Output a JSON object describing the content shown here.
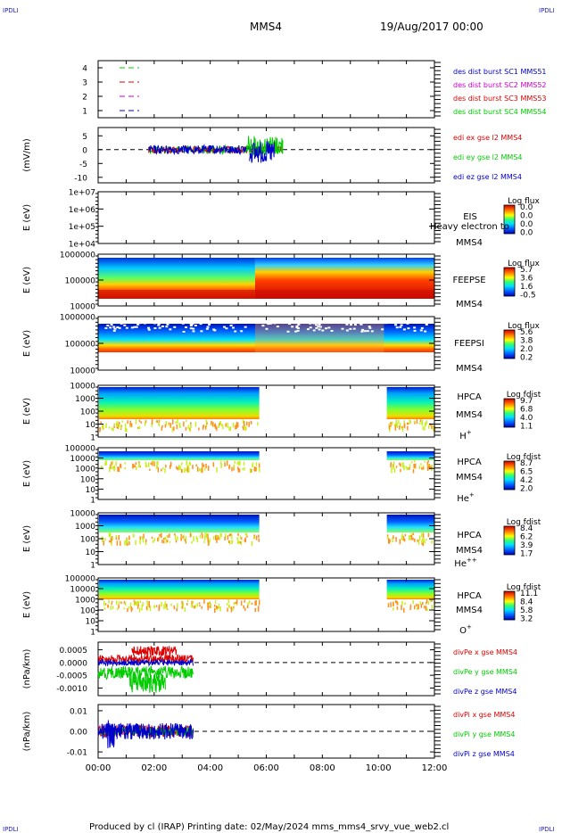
{
  "header": {
    "corner_left_top": "IPDLI",
    "corner_right_top": "IPDLI",
    "corner_left_bottom": "IPDLI",
    "corner_right_bottom": "IPDLI",
    "spacecraft": "MMS4",
    "date": "19/Aug/2017 00:00"
  },
  "footer": {
    "text": "Produced by cl (IRAP)   Printing date: 02/May/2024   mms_mms4_srvy_vue_web2.cl"
  },
  "colors": {
    "sc1": "#0000cc",
    "sc2": "#cc00cc",
    "sc3": "#dd0000",
    "sc4": "#00cc00",
    "x": "#dd0000",
    "y": "#00cc00",
    "z": "#0000cc"
  },
  "chart_data": [
    {
      "type": "line",
      "panel": "availability",
      "ylim": [
        0.5,
        4.5
      ],
      "y_ticks": [
        "1",
        "2",
        "3",
        "4"
      ],
      "legend": [
        "des dist burst SC1 MMS51",
        "des dist burst SC2 MMS52",
        "des dist burst SC3 MMS53",
        "des dist burst SC4 MMS54"
      ]
    },
    {
      "type": "line",
      "panel": "edi-efield",
      "ylabel": "(mV/m)",
      "ylim": [
        -12,
        8
      ],
      "y_ticks": [
        "5",
        "0",
        "-5",
        "-10"
      ],
      "legend": [
        "edi ex gse l2 MMS4",
        "edi ey gse l2 MMS4",
        "edi ez gse l2 MMS4"
      ],
      "x_range_hours": [
        1.8,
        6.6
      ]
    },
    {
      "type": "heatmap",
      "panel": "eis",
      "ylabel": "E (eV)",
      "y_ticks": [
        "1e+07",
        "1e+06",
        "1e+05",
        "1e+04"
      ],
      "instrument": "EIS",
      "overlap_text": "Heavy electron to",
      "spacecraft": "MMS4",
      "colorbar_title": "Log flux",
      "colorbar_ticks": [
        "0.0",
        "0.0",
        "0.0",
        "0.0"
      ]
    },
    {
      "type": "heatmap",
      "panel": "feepse",
      "ylabel": "E (eV)",
      "y_ticks": [
        "1000000",
        "100000",
        "10000"
      ],
      "instrument": "FEEPSE",
      "spacecraft": "MMS4",
      "colorbar_title": "Log flux",
      "colorbar_ticks": [
        "5.7",
        "3.6",
        "1.6",
        "-0.5"
      ]
    },
    {
      "type": "heatmap",
      "panel": "feepsi",
      "ylabel": "E (eV)",
      "y_ticks": [
        "1000000",
        "100000",
        "10000"
      ],
      "instrument": "FEEPSI",
      "spacecraft": "MMS4",
      "colorbar_title": "Log flux",
      "colorbar_ticks": [
        "5.6",
        "3.8",
        "2.0",
        "0.2"
      ]
    },
    {
      "type": "heatmap",
      "panel": "hpca-h",
      "ylabel": "E (eV)",
      "y_ticks": [
        "10000",
        "1000",
        "100",
        "10",
        "1"
      ],
      "instrument": "HPCA",
      "spacecraft": "MMS4",
      "species": "H",
      "species_sup": "+",
      "colorbar_title": "Log fdist",
      "colorbar_ticks": [
        "9.7",
        "6.8",
        "4.0",
        "1.1"
      ]
    },
    {
      "type": "heatmap",
      "panel": "hpca-he",
      "ylabel": "E (eV)",
      "y_ticks": [
        "100000",
        "10000",
        "1000",
        "100",
        "10",
        "1"
      ],
      "instrument": "HPCA",
      "spacecraft": "MMS4",
      "species": "He",
      "species_sup": "+",
      "colorbar_title": "Log fdist",
      "colorbar_ticks": [
        "8.7",
        "6.5",
        "4.2",
        "2.0"
      ]
    },
    {
      "type": "heatmap",
      "panel": "hpca-hepp",
      "ylabel": "E (eV)",
      "y_ticks": [
        "10000",
        "1000",
        "100",
        "10",
        "1"
      ],
      "instrument": "HPCA",
      "spacecraft": "MMS4",
      "species": "He",
      "species_sup": "++",
      "colorbar_title": "Log fdist",
      "colorbar_ticks": [
        "8.4",
        "6.2",
        "3.9",
        "1.7"
      ]
    },
    {
      "type": "heatmap",
      "panel": "hpca-o",
      "ylabel": "E (eV)",
      "y_ticks": [
        "100000",
        "10000",
        "1000",
        "100",
        "10",
        "1"
      ],
      "instrument": "HPCA",
      "spacecraft": "MMS4",
      "species": "O",
      "species_sup": "+",
      "colorbar_title": "Log fdist",
      "colorbar_ticks": [
        "11.1",
        "8.4",
        "5.8",
        "3.2"
      ]
    },
    {
      "type": "line",
      "panel": "divpe",
      "ylabel": "(nPa/km)",
      "ylim": [
        -0.0013,
        0.0008
      ],
      "y_ticks": [
        "0.0005",
        "0.0000",
        "-0.0005",
        "-0.0010"
      ],
      "legend": [
        "divPe x gse MMS4",
        "divPe y gse MMS4",
        "divPe z gse MMS4"
      ],
      "x_range_hours": [
        0.0,
        3.4
      ]
    },
    {
      "type": "line",
      "panel": "divpi",
      "ylabel": "(nPa/km)",
      "ylim": [
        -0.013,
        0.013
      ],
      "y_ticks": [
        "0.01",
        "0.00",
        "-0.01"
      ],
      "legend": [
        "divPi x gse MMS4",
        "divPi y gse MMS4",
        "divPi z gse MMS4"
      ],
      "x_range_hours": [
        0.0,
        3.4
      ]
    }
  ],
  "x_axis": {
    "range_hours": [
      0,
      12
    ],
    "tick_labels": [
      "00:00",
      "02:00",
      "04:00",
      "06:00",
      "08:00",
      "10:00",
      "12:00"
    ]
  }
}
